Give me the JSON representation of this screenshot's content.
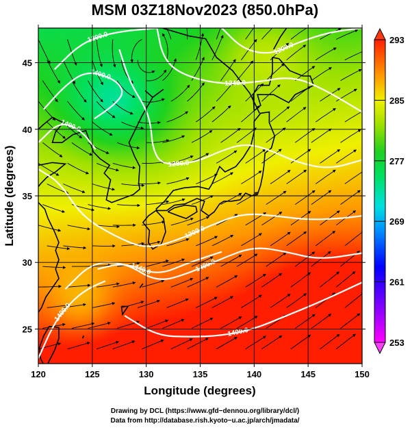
{
  "title": "MSM 03Z18Nov2023 (850.0hPa)",
  "chart_data": {
    "type": "heatmap",
    "title": "MSM 03Z18Nov2023 (850.0hPa)",
    "xlabel": "Longitude (degrees)",
    "ylabel": "Latitude  (degrees)",
    "xlim": [
      120,
      150
    ],
    "ylim": [
      22.4,
      47.6
    ],
    "xticks": [
      "120",
      "125",
      "130",
      "135",
      "140",
      "145",
      "150"
    ],
    "yticks": [
      "25",
      "30",
      "35",
      "40",
      "45"
    ],
    "xtick_values": [
      120,
      125,
      130,
      135,
      140,
      145,
      150
    ],
    "ytick_values": [
      25,
      30,
      35,
      40,
      45
    ],
    "grid": true,
    "colorbar": {
      "ticks": [
        "293",
        "285",
        "277",
        "269",
        "261",
        "253"
      ],
      "tick_values": [
        293,
        285,
        277,
        269,
        261,
        253
      ],
      "range": [
        253,
        293
      ]
    },
    "contours": [
      {
        "label": "1200.0",
        "points": [
          [
            121.5,
            44.5
          ],
          [
            124,
            46.5
          ],
          [
            127,
            47.3
          ],
          [
            131,
            47.6
          ]
        ]
      },
      {
        "label": "1200.0",
        "points": [
          [
            137,
            47.6
          ],
          [
            139,
            46
          ],
          [
            141.5,
            45.6
          ],
          [
            144,
            46.5
          ],
          [
            147,
            47.3
          ],
          [
            150,
            47.6
          ]
        ]
      },
      {
        "label": "1240.0",
        "points": [
          [
            131,
            47.6
          ],
          [
            131.5,
            45.5
          ],
          [
            133,
            44.2
          ],
          [
            136.5,
            43.4
          ],
          [
            140,
            43.5
          ],
          [
            143.5,
            44
          ],
          [
            146.5,
            43
          ],
          [
            150,
            41.3
          ]
        ]
      },
      {
        "label": "1400.0",
        "points": [
          [
            120.5,
            41.5
          ],
          [
            122.5,
            43.3
          ],
          [
            124.5,
            44.4
          ],
          [
            127,
            43.8
          ],
          [
            128,
            42.8
          ],
          [
            127,
            41.8
          ],
          [
            125.2,
            40.8
          ]
        ]
      },
      {
        "label": "1400.0",
        "points": [
          [
            120,
            39
          ],
          [
            122,
            40.6
          ],
          [
            124,
            39.9
          ],
          [
            125.3,
            38.5
          ]
        ]
      },
      {
        "label": "1280.0",
        "points": [
          [
            127.5,
            46
          ],
          [
            128.5,
            43.5
          ],
          [
            129.8,
            41.8
          ],
          [
            130.4,
            40.5
          ],
          [
            130.6,
            38.5
          ],
          [
            131.5,
            37.3
          ],
          [
            134.5,
            37.5
          ],
          [
            137,
            38.4
          ],
          [
            139,
            38.9
          ],
          [
            141,
            38.6
          ],
          [
            144,
            37.5
          ],
          [
            147,
            37
          ],
          [
            150,
            37.7
          ]
        ]
      },
      {
        "label": "1300.0",
        "points": [
          [
            120,
            37
          ],
          [
            122,
            36
          ],
          [
            124,
            33.5
          ],
          [
            127,
            32
          ],
          [
            130,
            31
          ],
          [
            133,
            31.7
          ],
          [
            136,
            32.8
          ],
          [
            139,
            33.7
          ],
          [
            142,
            33.5
          ],
          [
            145,
            33.2
          ],
          [
            148,
            33.3
          ],
          [
            150,
            33.5
          ]
        ]
      },
      {
        "label": "1400.0",
        "points": [
          [
            122.5,
            28
          ],
          [
            125,
            30
          ],
          [
            128,
            30
          ],
          [
            131,
            28.5
          ],
          [
            134,
            29.2
          ],
          [
            137,
            30.3
          ],
          [
            140,
            31.2
          ],
          [
            143,
            30.8
          ],
          [
            146,
            30.2
          ],
          [
            150,
            30.7
          ]
        ]
      },
      {
        "label": "1400.0",
        "points": [
          [
            128,
            26
          ],
          [
            131,
            24.5
          ],
          [
            134,
            24.4
          ],
          [
            137,
            24.5
          ],
          [
            140,
            25
          ],
          [
            143,
            26
          ],
          [
            146,
            27
          ],
          [
            150,
            28.5
          ]
        ]
      },
      {
        "label": "1440.0",
        "points": [
          [
            125.5,
            29.5
          ],
          [
            128,
            30
          ],
          [
            131,
            29
          ],
          [
            134,
            30
          ],
          [
            137,
            30.8
          ]
        ]
      },
      {
        "label": "1400.0",
        "points": [
          [
            120,
            22.8
          ],
          [
            121.5,
            25.5
          ],
          [
            123,
            27
          ],
          [
            124.5,
            28
          ],
          [
            126.2,
            28.6
          ]
        ]
      }
    ],
    "coastlines": [
      [
        [
          131.6,
          43.0
        ],
        [
          130.6,
          42.4
        ],
        [
          129.6,
          41.0
        ],
        [
          129.0,
          40.0
        ],
        [
          128.4,
          39.0
        ],
        [
          128.9,
          38.0
        ],
        [
          129.4,
          37.2
        ],
        [
          129.3,
          36.0
        ],
        [
          129.4,
          35.5
        ],
        [
          128.8,
          35.1
        ],
        [
          127.8,
          34.8
        ],
        [
          126.8,
          34.5
        ],
        [
          126.3,
          34.7
        ],
        [
          126.5,
          35.5
        ],
        [
          126.7,
          36.2
        ],
        [
          126.1,
          36.7
        ],
        [
          126.6,
          37.3
        ],
        [
          125.7,
          37.8
        ],
        [
          125.1,
          38.3
        ],
        [
          124.8,
          39.0
        ],
        [
          124.4,
          39.9
        ],
        [
          123.2,
          39.6
        ],
        [
          122.2,
          39.0
        ],
        [
          121.3,
          39.0
        ],
        [
          121.6,
          39.8
        ],
        [
          122.3,
          40.5
        ],
        [
          121.3,
          40.9
        ],
        [
          120.4,
          40.3
        ],
        [
          120.0,
          40.0
        ]
      ],
      [
        [
          120.0,
          37.3
        ],
        [
          121.3,
          37.5
        ],
        [
          122.5,
          37.4
        ],
        [
          121.6,
          36.8
        ],
        [
          120.8,
          36.4
        ],
        [
          120.2,
          35.9
        ],
        [
          119.6,
          35.3
        ],
        [
          120.0,
          34.5
        ],
        [
          120.6,
          34.0
        ],
        [
          120.9,
          33.3
        ],
        [
          121.5,
          32.3
        ],
        [
          121.9,
          31.5
        ],
        [
          121.6,
          30.9
        ],
        [
          121.9,
          30.2
        ],
        [
          121.6,
          29.5
        ],
        [
          121.9,
          28.8
        ],
        [
          121.3,
          28.1
        ],
        [
          120.7,
          27.4
        ],
        [
          120.3,
          26.6
        ],
        [
          119.7,
          25.9
        ],
        [
          119.3,
          25.2
        ],
        [
          118.8,
          24.6
        ],
        [
          118.2,
          24.0
        ]
      ],
      [
        [
          121.0,
          25.2
        ],
        [
          121.9,
          25.1
        ],
        [
          121.9,
          24.3
        ],
        [
          121.5,
          23.4
        ],
        [
          121.0,
          22.6
        ],
        [
          120.7,
          22.0
        ],
        [
          120.2,
          22.8
        ],
        [
          120.1,
          23.6
        ],
        [
          120.5,
          24.5
        ],
        [
          121.0,
          25.2
        ]
      ],
      [
        [
          130.9,
          34.0
        ],
        [
          131.7,
          34.6
        ],
        [
          132.5,
          35.4
        ],
        [
          133.5,
          35.6
        ],
        [
          134.8,
          35.7
        ],
        [
          135.8,
          35.5
        ],
        [
          136.1,
          35.9
        ],
        [
          136.8,
          37.2
        ],
        [
          137.3,
          36.8
        ],
        [
          138.3,
          37.2
        ],
        [
          139.0,
          37.9
        ],
        [
          139.7,
          38.8
        ],
        [
          140.0,
          39.8
        ],
        [
          140.0,
          40.6
        ],
        [
          140.6,
          41.2
        ],
        [
          141.4,
          41.3
        ],
        [
          141.4,
          40.5
        ],
        [
          141.9,
          39.5
        ],
        [
          141.6,
          38.6
        ],
        [
          141.0,
          38.2
        ],
        [
          140.9,
          37.2
        ],
        [
          140.8,
          36.6
        ],
        [
          140.6,
          35.8
        ],
        [
          140.3,
          35.1
        ],
        [
          139.8,
          35.0
        ],
        [
          139.2,
          35.2
        ],
        [
          138.7,
          34.7
        ],
        [
          137.9,
          34.6
        ],
        [
          137.2,
          34.6
        ],
        [
          136.8,
          34.4
        ],
        [
          136.3,
          33.8
        ],
        [
          135.8,
          33.5
        ],
        [
          135.1,
          33.9
        ],
        [
          135.4,
          34.6
        ],
        [
          134.7,
          34.8
        ],
        [
          133.6,
          34.4
        ],
        [
          132.6,
          34.3
        ],
        [
          131.9,
          33.9
        ],
        [
          131.0,
          33.9
        ],
        [
          130.9,
          34.0
        ]
      ],
      [
        [
          130.9,
          33.9
        ],
        [
          131.6,
          33.3
        ],
        [
          131.8,
          32.3
        ],
        [
          131.4,
          31.4
        ],
        [
          130.6,
          31.0
        ],
        [
          130.2,
          31.5
        ],
        [
          130.3,
          32.4
        ],
        [
          129.7,
          33.0
        ],
        [
          130.2,
          33.5
        ],
        [
          130.9,
          33.9
        ]
      ],
      [
        [
          132.0,
          33.8
        ],
        [
          133.0,
          33.5
        ],
        [
          133.7,
          33.3
        ],
        [
          134.7,
          33.8
        ],
        [
          134.6,
          34.2
        ],
        [
          133.6,
          34.3
        ],
        [
          132.6,
          34.1
        ],
        [
          132.0,
          33.8
        ]
      ],
      [
        [
          140.0,
          41.4
        ],
        [
          140.6,
          41.8
        ],
        [
          140.3,
          42.6
        ],
        [
          141.2,
          42.6
        ],
        [
          141.8,
          42.6
        ],
        [
          143.2,
          42.0
        ],
        [
          143.8,
          42.6
        ],
        [
          144.8,
          43.0
        ],
        [
          145.5,
          43.3
        ],
        [
          145.2,
          44.0
        ],
        [
          144.5,
          44.0
        ],
        [
          143.3,
          44.4
        ],
        [
          142.3,
          45.3
        ],
        [
          141.7,
          45.4
        ],
        [
          141.7,
          44.3
        ],
        [
          141.4,
          43.3
        ],
        [
          140.4,
          43.3
        ],
        [
          139.9,
          42.6
        ],
        [
          140.0,
          41.4
        ]
      ],
      [
        [
          141.8,
          46.0
        ],
        [
          142.4,
          46.9
        ],
        [
          143.0,
          47.6
        ]
      ],
      [
        [
          129.7,
          28.4
        ],
        [
          129.4,
          28.1
        ]
      ],
      [
        [
          127.7,
          26.7
        ],
        [
          128.3,
          26.7
        ],
        [
          127.8,
          26.1
        ],
        [
          127.7,
          26.7
        ]
      ],
      [
        [
          124.2,
          24.5
        ],
        [
          124.1,
          24.3
        ]
      ],
      [
        [
          131.5,
          47.6
        ],
        [
          134.0,
          47.0
        ],
        [
          135.5,
          46.8
        ],
        [
          136.5,
          45.4
        ],
        [
          138.0,
          44.4
        ],
        [
          139.6,
          42.7
        ],
        [
          140.5,
          41.2
        ]
      ],
      [
        [
          129.9,
          42.9
        ],
        [
          130.6,
          42.4
        ]
      ]
    ],
    "colormap": "rainbow: magenta-blue-cyan-green-yellow-orange-red"
  },
  "credits": {
    "line1": "Drawing by DCL (https://www.gfd−dennou.org/library/dcl/)",
    "line2": "Data from http://database.rish.kyoto−u.ac.jp/arch/jmadata/"
  }
}
